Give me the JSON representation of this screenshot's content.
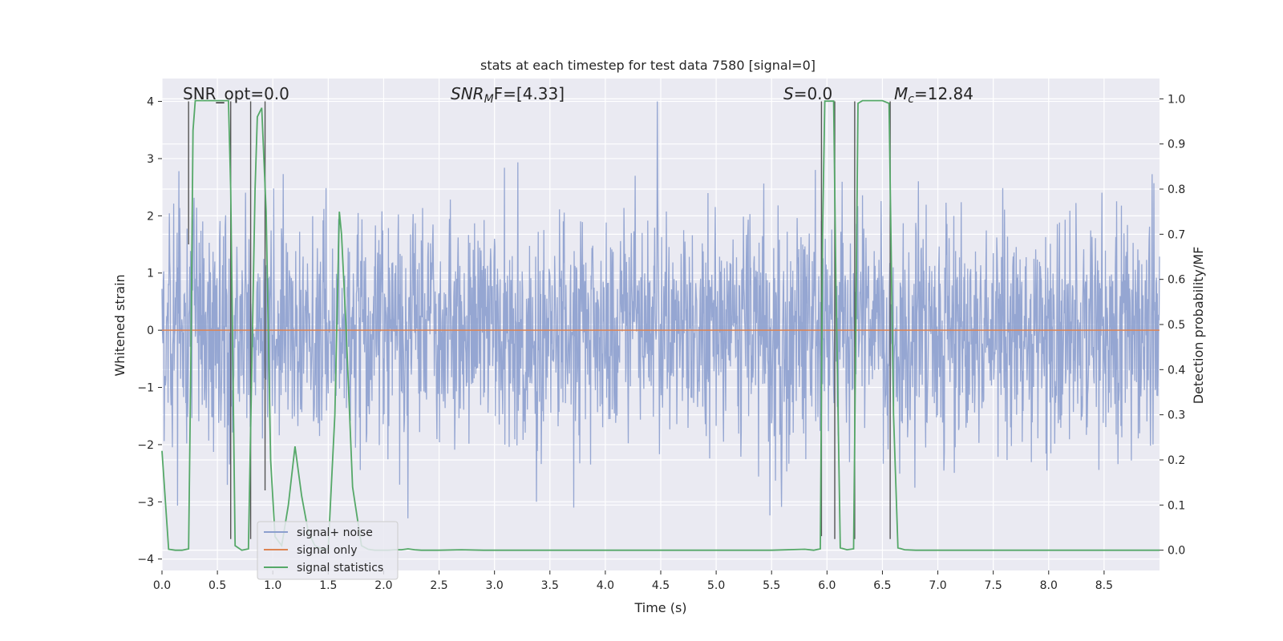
{
  "chart_data": {
    "type": "line",
    "title": "stats at each timestep for test data 7580 [signal=0]",
    "xlabel": "Time (s)",
    "ylabel": "Whitened strain",
    "ylabel_right": "Detection probability/MF",
    "xlim": [
      0,
      9.0
    ],
    "ylim": [
      -4.2,
      4.4
    ],
    "ylim_right": [
      -0.045,
      1.045
    ],
    "x_ticks": [
      "0.0",
      "0.5",
      "1.0",
      "1.5",
      "2.0",
      "2.5",
      "3.0",
      "3.5",
      "4.0",
      "4.5",
      "5.0",
      "5.5",
      "6.0",
      "6.5",
      "7.0",
      "7.5",
      "8.0",
      "8.5"
    ],
    "x_tick_values": [
      0,
      0.5,
      1.0,
      1.5,
      2.0,
      2.5,
      3.0,
      3.5,
      4.0,
      4.5,
      5.0,
      5.5,
      6.0,
      6.5,
      7.0,
      7.5,
      8.0,
      8.5
    ],
    "y_ticks": [
      "4",
      "3",
      "2",
      "1",
      "0",
      "−1",
      "−2",
      "−3",
      "−4"
    ],
    "y_tick_values": [
      4,
      3,
      2,
      1,
      0,
      -1,
      -2,
      -3,
      -4
    ],
    "y_ticks_right": [
      "1.0",
      "0.9",
      "0.8",
      "0.7",
      "0.6",
      "0.5",
      "0.4",
      "0.3",
      "0.2",
      "0.1",
      "0.0"
    ],
    "y_tick_values_right": [
      1.0,
      0.9,
      0.8,
      0.7,
      0.6,
      0.5,
      0.4,
      0.3,
      0.2,
      0.1,
      0.0
    ],
    "legend": [
      "signal+ noise",
      "signal only",
      "signal statistics"
    ],
    "legend_position": "lower-left",
    "annotations": {
      "snr_opt": "SNR_opt=0.0",
      "snr_mf": "SNR",
      "snr_mf_sub": "M",
      "snr_mf_tail": "F=[4.33]",
      "s_var": "S",
      "s_value": "=0.0",
      "mc_var": "M",
      "mc_sub": "c",
      "mc_value": "=12.84"
    },
    "colors": {
      "noise": "#8c9fce",
      "signal_only": "#dd8452",
      "statistics": "#55a868",
      "markers": "#555555",
      "plot_bg": "#eaeaf2",
      "grid": "#ffffff"
    },
    "series": [
      {
        "name": "signal+ noise",
        "kind": "noise-envelope",
        "sample_rate": 256,
        "envelope": {
          "sigma": 1.0,
          "max_peak": 4.0,
          "min_trough": -3.65
        }
      },
      {
        "name": "signal only",
        "x": [
          0,
          9.0
        ],
        "y": [
          0,
          0
        ]
      },
      {
        "name": "signal statistics",
        "axis": "right",
        "x": [
          0,
          0.06,
          0.12,
          0.18,
          0.24,
          0.26,
          0.28,
          0.3,
          0.36,
          0.42,
          0.48,
          0.54,
          0.6,
          0.62,
          0.66,
          0.72,
          0.78,
          0.84,
          0.86,
          0.9,
          0.94,
          0.98,
          1.02,
          1.08,
          1.14,
          1.2,
          1.26,
          1.32,
          1.38,
          1.44,
          1.5,
          1.56,
          1.6,
          1.62,
          1.66,
          1.72,
          1.8,
          1.86,
          1.92,
          1.98,
          2.04,
          2.1,
          2.16,
          2.22,
          2.28,
          2.34,
          2.5,
          2.7,
          2.9,
          3.2,
          3.6,
          4.0,
          4.5,
          5.0,
          5.5,
          5.8,
          5.88,
          5.94,
          5.96,
          5.98,
          6.02,
          6.06,
          6.08,
          6.12,
          6.18,
          6.24,
          6.26,
          6.28,
          6.32,
          6.4,
          6.5,
          6.56,
          6.6,
          6.64,
          6.7,
          6.8,
          7.0,
          7.5,
          8.0,
          8.5,
          9.0
        ],
        "y": [
          0.22,
          0.002,
          0.0,
          0.0,
          0.003,
          0.4,
          0.93,
          0.996,
          0.996,
          0.996,
          0.996,
          0.996,
          0.996,
          0.8,
          0.01,
          0.0,
          0.003,
          0.8,
          0.96,
          0.98,
          0.75,
          0.2,
          0.03,
          0.01,
          0.1,
          0.23,
          0.12,
          0.04,
          0.01,
          0.003,
          0.003,
          0.3,
          0.75,
          0.7,
          0.5,
          0.14,
          0.01,
          0.002,
          0.0,
          0.0,
          0.0,
          0.001,
          0.001,
          0.003,
          0.001,
          0.0,
          0.0,
          0.001,
          0.0,
          0.0,
          0.0,
          0.0,
          0.0,
          0.0,
          0.0,
          0.002,
          0.0,
          0.003,
          0.7,
          0.995,
          0.995,
          0.995,
          0.6,
          0.005,
          0.001,
          0.003,
          0.5,
          0.99,
          0.996,
          0.996,
          0.996,
          0.99,
          0.3,
          0.005,
          0.001,
          0.0,
          0.0,
          0.0,
          0.0,
          0.0,
          0.0
        ]
      }
    ],
    "marker_lines": [
      {
        "x": 0.24,
        "y1": 1.5,
        "y2": 4.0
      },
      {
        "x": 0.62,
        "y1": -3.65,
        "y2": 4.0
      },
      {
        "x": 0.8,
        "y1": -3.65,
        "y2": 4.0
      },
      {
        "x": 0.93,
        "y1": -2.8,
        "y2": 4.0
      },
      {
        "x": 5.95,
        "y1": -3.6,
        "y2": 4.0
      },
      {
        "x": 6.07,
        "y1": -3.65,
        "y2": 4.0
      },
      {
        "x": 6.25,
        "y1": -3.65,
        "y2": 4.0
      },
      {
        "x": 6.57,
        "y1": -3.65,
        "y2": 4.0
      }
    ]
  }
}
